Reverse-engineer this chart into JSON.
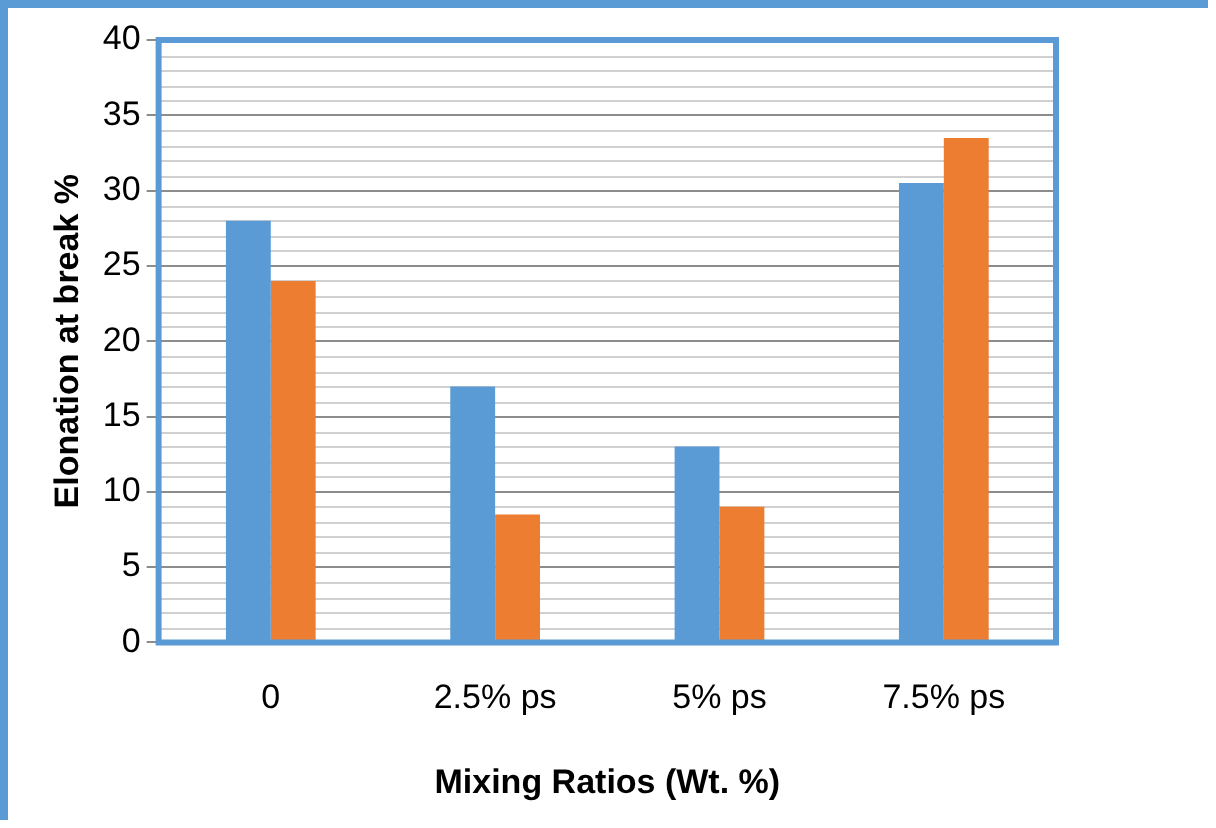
{
  "chart_data": {
    "type": "bar",
    "xlabel": "Mixing Ratios (Wt. %)",
    "ylabel": "Elonation at break %",
    "categories": [
      "0",
      "2.5% ps",
      "5% ps",
      "7.5% ps"
    ],
    "series": [
      {
        "color": "#5b9bd5",
        "values": [
          28,
          17,
          13,
          30.5
        ]
      },
      {
        "color": "#ed7d31",
        "values": [
          24,
          8.5,
          9,
          33.5
        ]
      }
    ],
    "ylim": [
      0,
      40
    ],
    "yticks": [
      0,
      5,
      10,
      15,
      20,
      25,
      30,
      35,
      40
    ],
    "grid": "y",
    "legend": false
  }
}
